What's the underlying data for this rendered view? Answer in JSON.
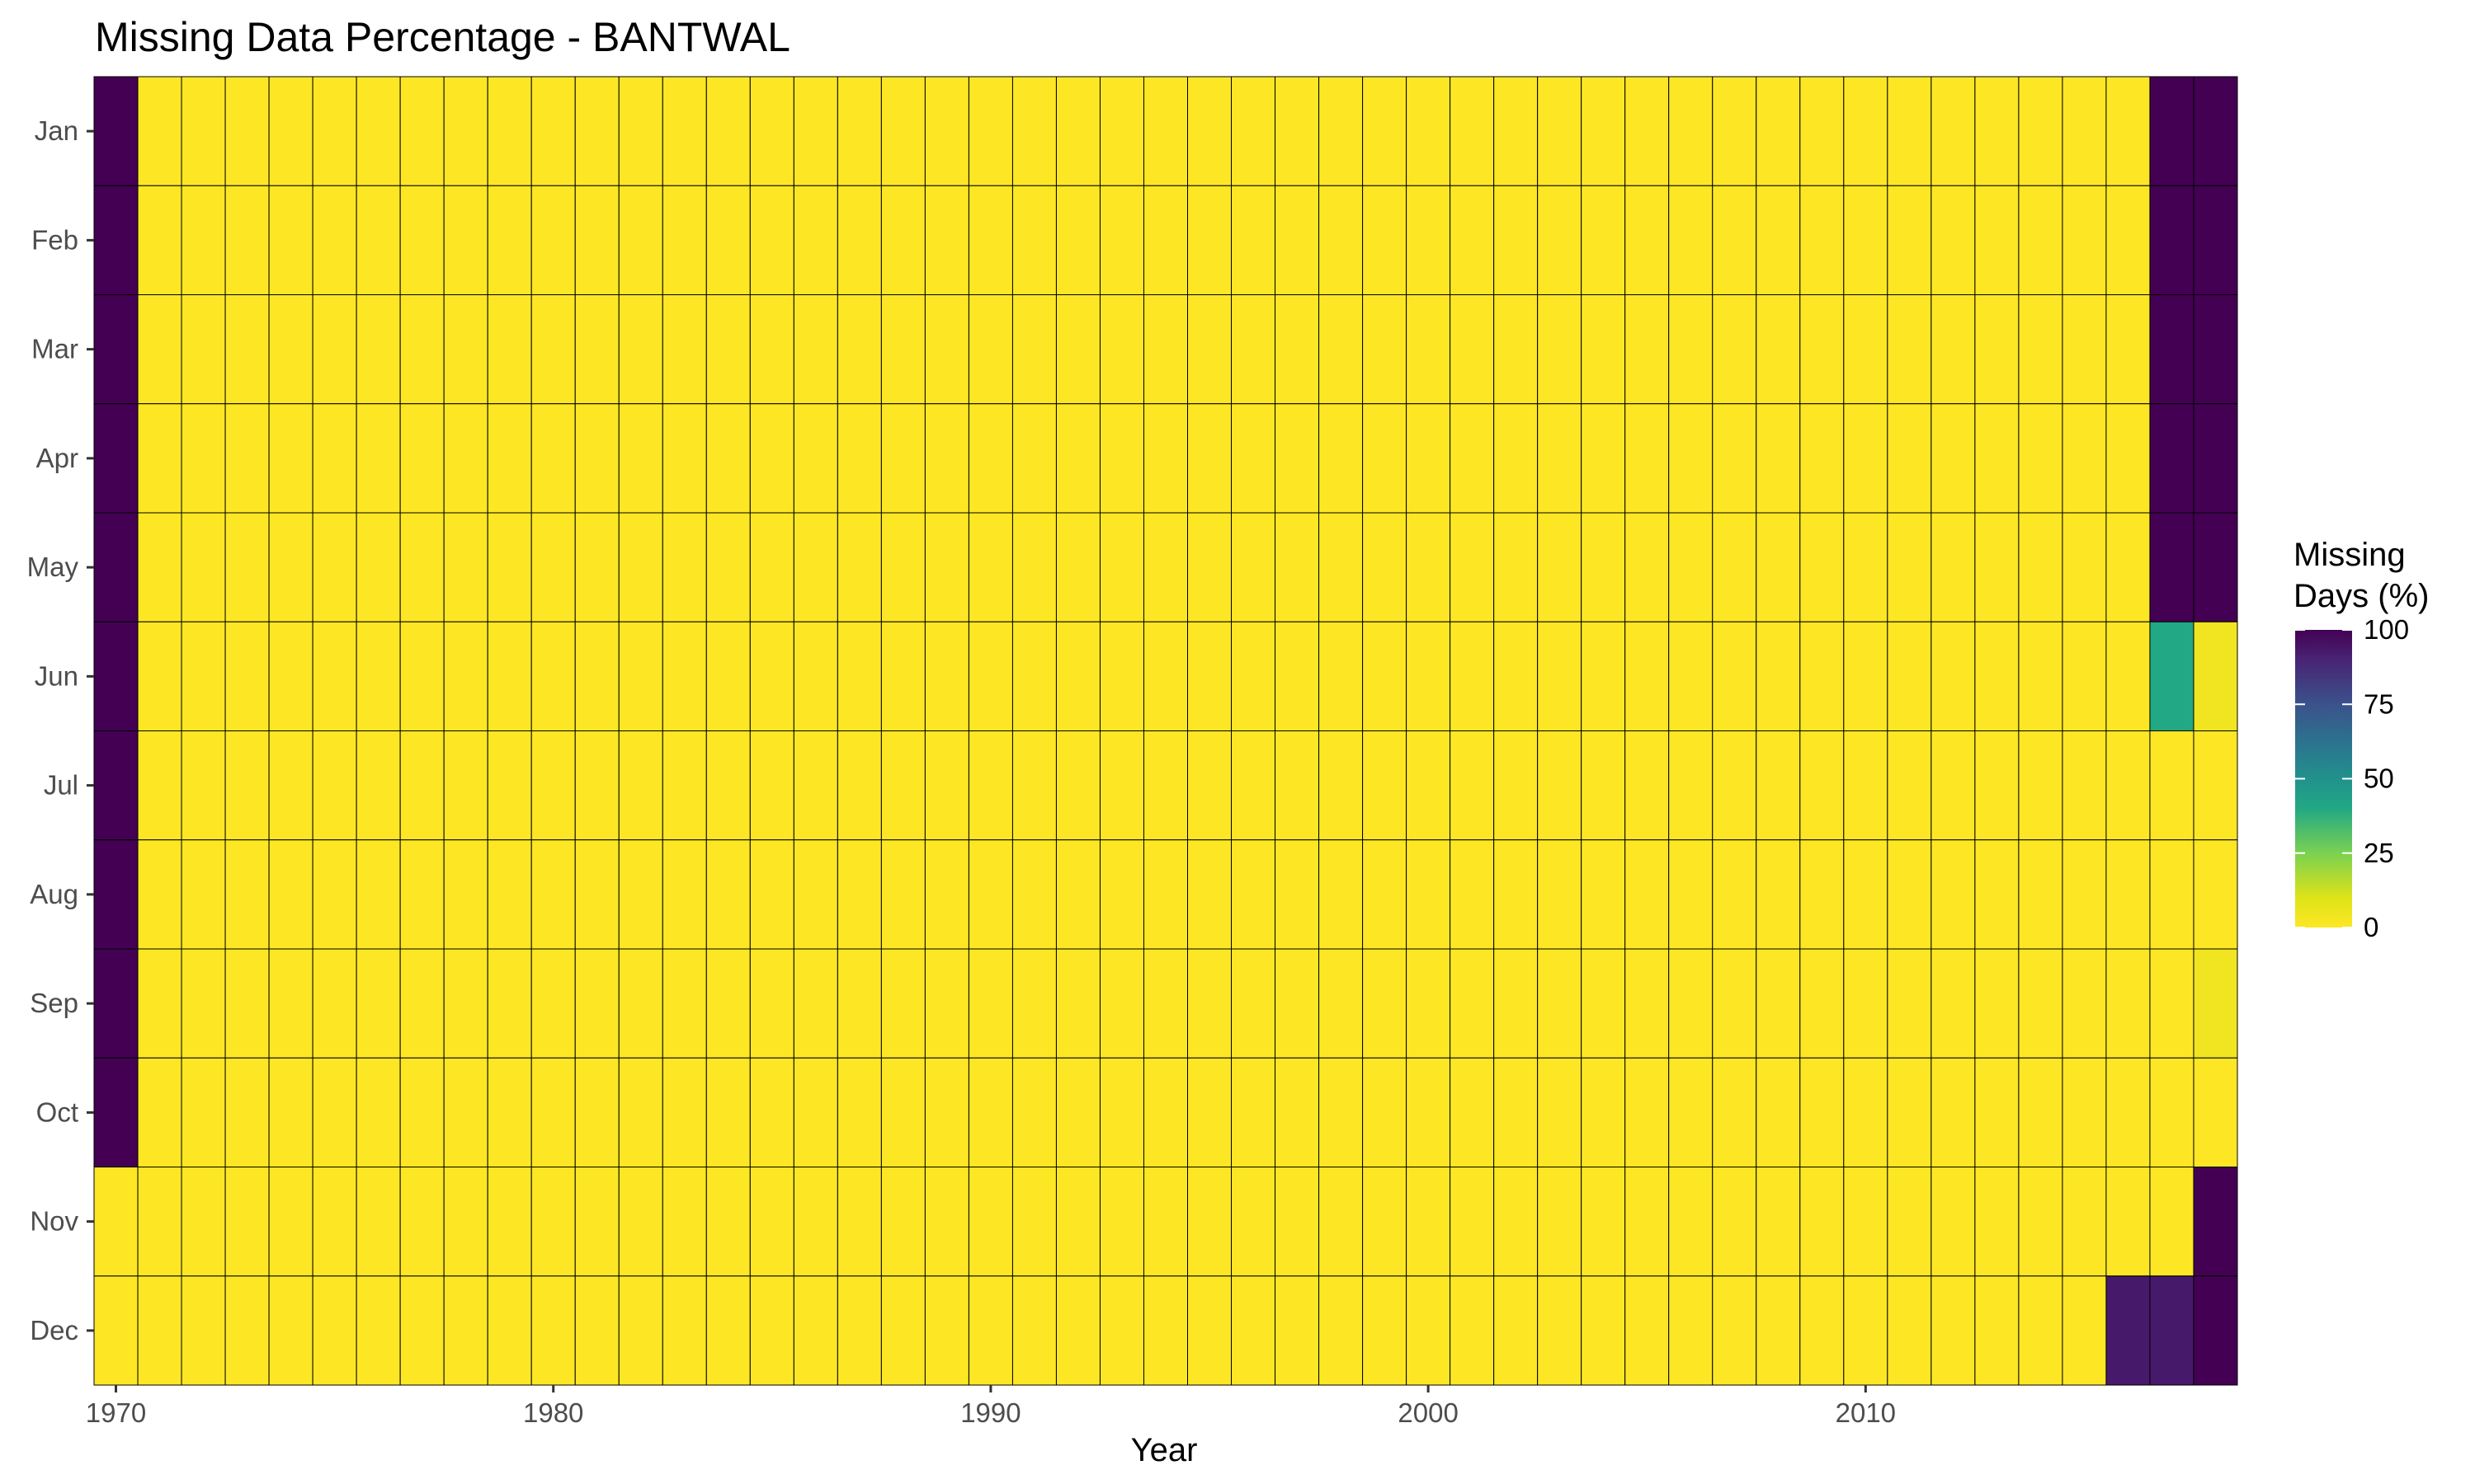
{
  "chart_data": {
    "type": "heatmap",
    "title": "Missing Data Percentage - BANTWAL",
    "xlabel": "Year",
    "ylabel": "",
    "x_ticks": [
      1970,
      1980,
      1990,
      2000,
      2010
    ],
    "x_range": [
      1969.5,
      2018.5
    ],
    "months": [
      "Jan",
      "Feb",
      "Mar",
      "Apr",
      "May",
      "Jun",
      "Jul",
      "Aug",
      "Sep",
      "Oct",
      "Nov",
      "Dec"
    ],
    "years": [
      1970,
      2018
    ],
    "default_value": 0,
    "cells": [
      {
        "year": 1970,
        "month": "Jan",
        "value": 100
      },
      {
        "year": 1970,
        "month": "Feb",
        "value": 100
      },
      {
        "year": 1970,
        "month": "Mar",
        "value": 100
      },
      {
        "year": 1970,
        "month": "Apr",
        "value": 100
      },
      {
        "year": 1970,
        "month": "May",
        "value": 100
      },
      {
        "year": 1970,
        "month": "Jun",
        "value": 100
      },
      {
        "year": 1970,
        "month": "Jul",
        "value": 100
      },
      {
        "year": 1970,
        "month": "Aug",
        "value": 100
      },
      {
        "year": 1970,
        "month": "Sep",
        "value": 100
      },
      {
        "year": 1970,
        "month": "Oct",
        "value": 100
      },
      {
        "year": 2016,
        "month": "Dec",
        "value": 93
      },
      {
        "year": 2017,
        "month": "Jan",
        "value": 100
      },
      {
        "year": 2017,
        "month": "Feb",
        "value": 100
      },
      {
        "year": 2017,
        "month": "Mar",
        "value": 100
      },
      {
        "year": 2017,
        "month": "Apr",
        "value": 100
      },
      {
        "year": 2017,
        "month": "May",
        "value": 100
      },
      {
        "year": 2017,
        "month": "Jun",
        "value": 40
      },
      {
        "year": 2017,
        "month": "Dec",
        "value": 93
      },
      {
        "year": 2018,
        "month": "Jan",
        "value": 100
      },
      {
        "year": 2018,
        "month": "Feb",
        "value": 100
      },
      {
        "year": 2018,
        "month": "Mar",
        "value": 100
      },
      {
        "year": 2018,
        "month": "Apr",
        "value": 100
      },
      {
        "year": 2018,
        "month": "May",
        "value": 100
      },
      {
        "year": 2018,
        "month": "Jun",
        "value": 4
      },
      {
        "year": 2018,
        "month": "Sep",
        "value": 4
      },
      {
        "year": 2018,
        "month": "Nov",
        "value": 100
      },
      {
        "year": 2018,
        "month": "Dec",
        "value": 100
      }
    ],
    "legend": {
      "title_lines": [
        "Missing",
        "Days (%)"
      ],
      "ticks": [
        100,
        75,
        50,
        25,
        0
      ],
      "range": [
        0,
        100
      ],
      "position": "right"
    },
    "colorscale": "viridis-reversed",
    "grid": false,
    "cell_border_color": "#000000"
  }
}
